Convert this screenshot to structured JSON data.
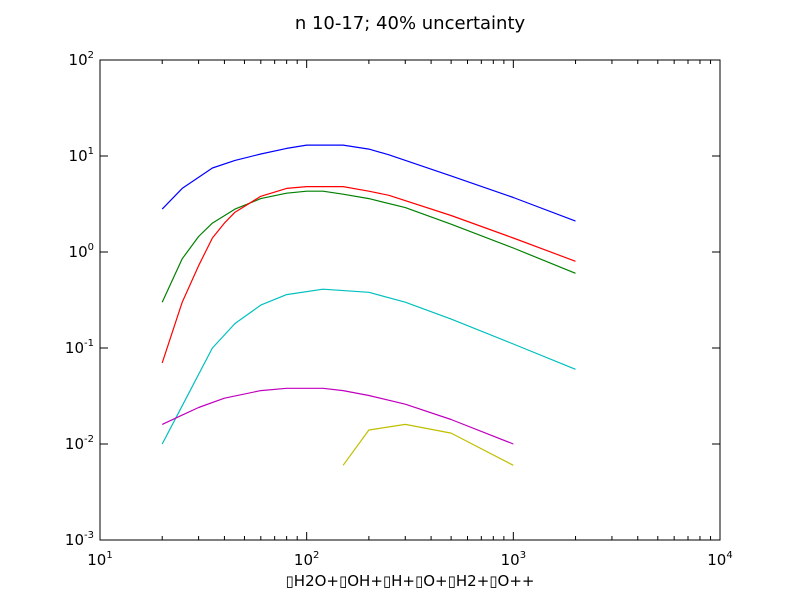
{
  "chart_data": {
    "type": "line",
    "title": "n 10-17; 40% uncertainty",
    "xlabel": "▯H2O+▯OH+▯H+▯O+▯H2+▯O++",
    "ylabel": "",
    "x_scale": "log",
    "y_scale": "log",
    "xlim": [
      10,
      10000
    ],
    "ylim": [
      0.001,
      100
    ],
    "grid": false,
    "x_ticks": [
      {
        "value": 10,
        "base": "10",
        "exp": "1"
      },
      {
        "value": 100,
        "base": "10",
        "exp": "2"
      },
      {
        "value": 1000,
        "base": "10",
        "exp": "3"
      },
      {
        "value": 10000,
        "base": "10",
        "exp": "4"
      }
    ],
    "y_ticks": [
      {
        "value": 0.001,
        "base": "10",
        "exp": "-3"
      },
      {
        "value": 0.01,
        "base": "10",
        "exp": "-2"
      },
      {
        "value": 0.1,
        "base": "10",
        "exp": "-1"
      },
      {
        "value": 1,
        "base": "10",
        "exp": "0"
      },
      {
        "value": 10,
        "base": "10",
        "exp": "1"
      },
      {
        "value": 100,
        "base": "10",
        "exp": "2"
      }
    ],
    "series": [
      {
        "color": "#0000ff",
        "x": [
          20,
          25,
          35,
          45,
          60,
          80,
          100,
          150,
          200,
          250,
          500,
          1000,
          2000
        ],
        "y": [
          2.8,
          4.6,
          7.5,
          9.0,
          10.5,
          12.0,
          13.0,
          13.0,
          11.8,
          10.3,
          6.2,
          3.7,
          2.1
        ]
      },
      {
        "color": "#008000",
        "x": [
          20,
          25,
          30,
          35,
          45,
          60,
          80,
          100,
          120,
          150,
          200,
          300,
          500,
          1000,
          2000
        ],
        "y": [
          0.3,
          0.85,
          1.45,
          2.0,
          2.8,
          3.6,
          4.1,
          4.3,
          4.3,
          4.0,
          3.6,
          2.9,
          1.95,
          1.1,
          0.6
        ]
      },
      {
        "color": "#ff0000",
        "x": [
          20,
          25,
          30,
          35,
          40,
          45,
          60,
          80,
          100,
          150,
          200,
          250,
          500,
          1000,
          2000
        ],
        "y": [
          0.07,
          0.3,
          0.72,
          1.4,
          2.0,
          2.6,
          3.8,
          4.6,
          4.8,
          4.8,
          4.3,
          3.9,
          2.4,
          1.4,
          0.8
        ]
      },
      {
        "color": "#00bfbf",
        "x": [
          20,
          25,
          35,
          45,
          60,
          80,
          120,
          200,
          300,
          500,
          1000,
          2000
        ],
        "y": [
          0.01,
          0.025,
          0.1,
          0.18,
          0.28,
          0.36,
          0.41,
          0.38,
          0.3,
          0.2,
          0.11,
          0.06
        ]
      },
      {
        "color": "#bf00bf",
        "x": [
          20,
          25,
          30,
          40,
          60,
          80,
          120,
          150,
          200,
          300,
          500,
          1000
        ],
        "y": [
          0.016,
          0.02,
          0.024,
          0.03,
          0.036,
          0.038,
          0.038,
          0.036,
          0.032,
          0.026,
          0.018,
          0.01
        ]
      },
      {
        "color": "#bfbf00",
        "x": [
          150,
          200,
          300,
          500,
          1000
        ],
        "y": [
          0.006,
          0.014,
          0.016,
          0.013,
          0.006
        ]
      }
    ]
  }
}
